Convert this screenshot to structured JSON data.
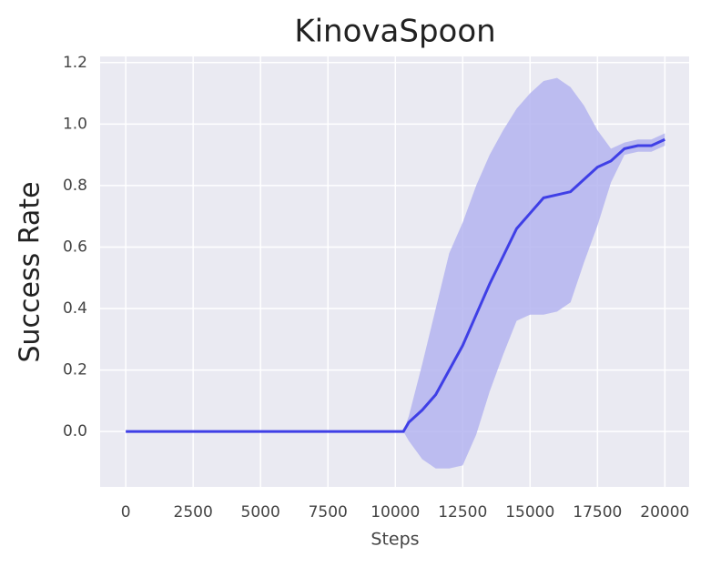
{
  "chart_data": {
    "type": "line",
    "title": "KinovaSpoon",
    "xlabel": "Steps",
    "ylabel": "Success Rate",
    "x": [
      0,
      10300,
      10500,
      11000,
      11500,
      12000,
      12500,
      13000,
      13500,
      14000,
      14500,
      15000,
      15500,
      16000,
      16500,
      17000,
      17500,
      18000,
      18500,
      19000,
      19500,
      20000
    ],
    "series": [
      {
        "color": "#3f3fe6",
        "band_color": "#b4b4f0",
        "values": [
          0,
          0,
          0.03,
          0.07,
          0.12,
          0.2,
          0.28,
          0.38,
          0.48,
          0.57,
          0.66,
          0.71,
          0.76,
          0.77,
          0.78,
          0.82,
          0.86,
          0.88,
          0.92,
          0.93,
          0.93,
          0.95
        ],
        "upper": [
          0,
          0,
          0.05,
          0.22,
          0.4,
          0.58,
          0.68,
          0.8,
          0.9,
          0.98,
          1.05,
          1.1,
          1.14,
          1.15,
          1.12,
          1.06,
          0.98,
          0.92,
          0.94,
          0.95,
          0.95,
          0.97
        ],
        "lower": [
          0,
          0,
          -0.03,
          -0.09,
          -0.12,
          -0.12,
          -0.11,
          -0.01,
          0.13,
          0.25,
          0.36,
          0.38,
          0.38,
          0.39,
          0.42,
          0.55,
          0.67,
          0.81,
          0.9,
          0.91,
          0.91,
          0.93
        ]
      }
    ],
    "xlim": [
      -950,
      20900
    ],
    "ylim": [
      -0.18,
      1.22
    ],
    "xticks": [
      0,
      2500,
      5000,
      7500,
      10000,
      12500,
      15000,
      17500,
      20000
    ],
    "yticks": [
      {
        "value": 0,
        "label": "0.0"
      },
      0.2,
      0.4,
      0.6,
      0.8,
      {
        "value": 1,
        "label": "1.0"
      },
      1.2
    ],
    "grid": true
  }
}
